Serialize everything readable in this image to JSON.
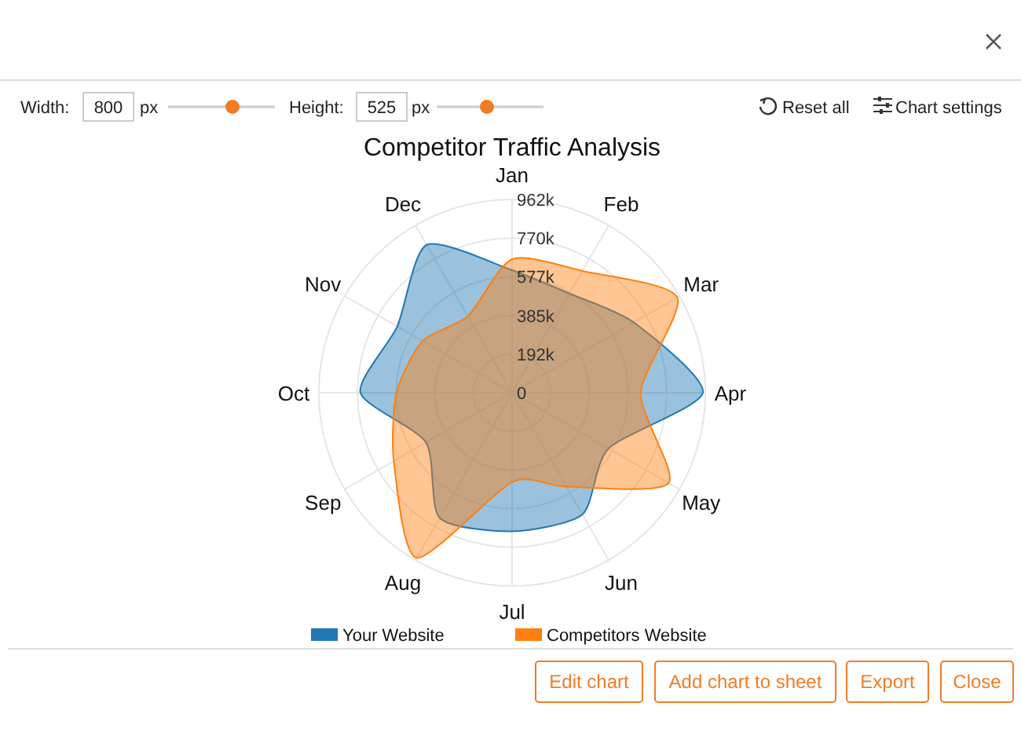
{
  "chart_data": [
    {
      "type": "radar",
      "title": "Competitor Traffic Analysis",
      "categories": [
        "Jan",
        "Feb",
        "Mar",
        "Apr",
        "May",
        "Jun",
        "Jul",
        "Aug",
        "Sep",
        "Oct",
        "Nov",
        "Dec"
      ],
      "series": [
        {
          "name": "Your Website",
          "color": "#1f77b4",
          "values": [
            610000,
            570000,
            700000,
            950000,
            555000,
            700000,
            690000,
            720000,
            495000,
            755000,
            660000,
            850000
          ]
        },
        {
          "name": "Competitors Website",
          "color": "#ff7f0e",
          "values": [
            665000,
            700000,
            950000,
            640000,
            900000,
            540000,
            445000,
            950000,
            680000,
            575000,
            515000,
            440000
          ]
        }
      ],
      "ylim": [
        0,
        962000
      ],
      "yticks": [
        0,
        {
          "value": 192400,
          "label": "192k"
        },
        {
          "value": 384800,
          "label": "385k"
        },
        {
          "value": 577200,
          "label": "577k"
        },
        {
          "value": 769600,
          "label": "770k"
        },
        {
          "value": 962000,
          "label": "962k"
        }
      ],
      "grid": true,
      "legend": "bottom"
    },
    {
      "type": "other",
      "annotations": [
        "Width:",
        "800",
        "px",
        "Height:",
        "525",
        "px",
        "Reset all",
        "Chart settings",
        "Edit chart",
        "Add chart to sheet",
        "Export",
        "Close"
      ]
    }
  ]
}
